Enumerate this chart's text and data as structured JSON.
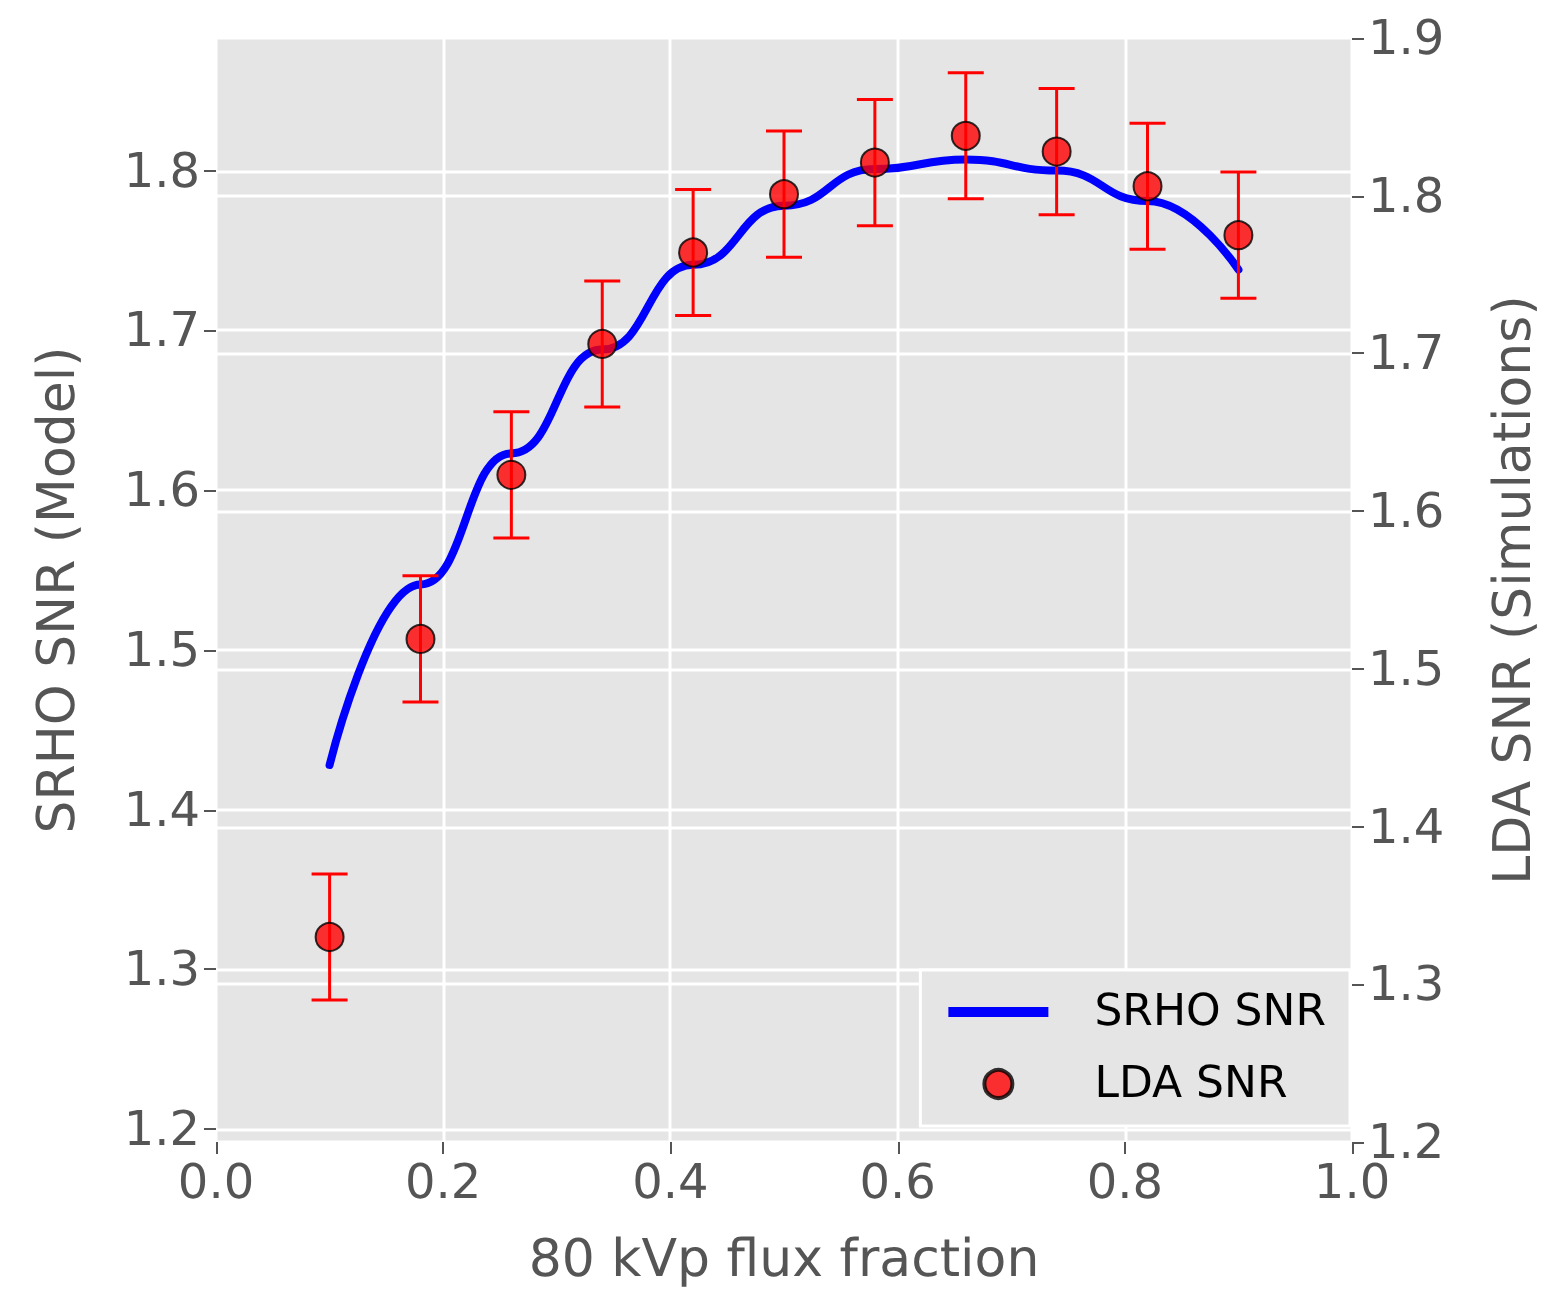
{
  "chart_data": {
    "type": "line",
    "xlabel": "80 kVp flux fraction",
    "ylabel": "SRHO SNR (Model)",
    "y2label": "LDA SNR (Simulations)",
    "xlim": [
      0.0,
      1.0
    ],
    "xticks": [
      {
        "value": 0,
        "label": "0.0"
      },
      0.2,
      0.4,
      0.6,
      0.8,
      {
        "value": 1,
        "label": "1.0"
      }
    ],
    "ylim": [
      1.192,
      1.883
    ],
    "yticks": [
      1.2,
      1.3,
      1.4,
      1.5,
      1.6,
      1.7,
      1.8
    ],
    "y2lim": [
      1.2,
      1.9
    ],
    "y2ticks": [
      1.2,
      1.3,
      1.4,
      1.5,
      1.6,
      1.7,
      1.8,
      1.9
    ],
    "grid": true,
    "legend": "bottom right",
    "series": [
      {
        "name": "SRHO SNR",
        "type": "line",
        "color": "#0000ff",
        "marker": "none",
        "line_style": "solid",
        "x": [
          0.1,
          0.18,
          0.26,
          0.34,
          0.42,
          0.5,
          0.58,
          0.66,
          0.74,
          0.82,
          0.9
        ],
        "values": [
          1.428,
          1.541,
          1.623,
          1.688,
          1.741,
          1.778,
          1.801,
          1.807,
          1.8,
          1.781,
          1.738
        ]
      },
      {
        "name": "LDA SNR",
        "type": "scatter",
        "axis": "y2",
        "color": "#ff0000",
        "marker": "circle",
        "x": [
          0.1,
          0.18,
          0.26,
          0.34,
          0.42,
          0.5,
          0.58,
          0.66,
          0.74,
          0.82,
          0.9
        ],
        "values": [
          1.33,
          1.519,
          1.623,
          1.706,
          1.764,
          1.801,
          1.821,
          1.838,
          1.828,
          1.806,
          1.775
        ],
        "errors": [
          0.04,
          0.04,
          0.04,
          0.04,
          0.04,
          0.04,
          0.04,
          0.04,
          0.04,
          0.04,
          0.04
        ]
      }
    ]
  }
}
